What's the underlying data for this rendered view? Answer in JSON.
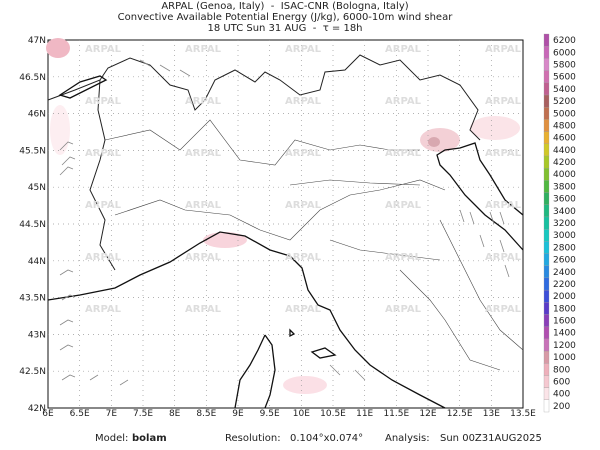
{
  "header": {
    "line1": "ARPAL (Genoa, Italy)  -  ISAC-CNR (Bologna, Italy)",
    "line2": "Convective Available Potential Energy (J/kg), 6000-10m wind shear",
    "line3": "18 UTC Sun 31 AUG  -  τ = 18h"
  },
  "map": {
    "watermark": "ARPAL",
    "lonlim": [
      6,
      13.5
    ],
    "latlim": [
      42,
      47
    ],
    "lon_ticks": [
      {
        "value": 6,
        "label": "6E"
      },
      {
        "value": 6.5,
        "label": "6.5E"
      },
      {
        "value": 7,
        "label": "7E"
      },
      {
        "value": 7.5,
        "label": "7.5E"
      },
      {
        "value": 8,
        "label": "8E"
      },
      {
        "value": 8.5,
        "label": "8.5E"
      },
      {
        "value": 9,
        "label": "9E"
      },
      {
        "value": 9.5,
        "label": "9.5E"
      },
      {
        "value": 10,
        "label": "10E"
      },
      {
        "value": 10.5,
        "label": "10.5E"
      },
      {
        "value": 11,
        "label": "11E"
      },
      {
        "value": 11.5,
        "label": "11.5E"
      },
      {
        "value": 12,
        "label": "12E"
      },
      {
        "value": 12.5,
        "label": "12.5E"
      },
      {
        "value": 13,
        "label": "13E"
      },
      {
        "value": 13.5,
        "label": "13.5E"
      }
    ],
    "lat_ticks": [
      {
        "value": 42,
        "label": "42N"
      },
      {
        "value": 42.5,
        "label": "42.5N"
      },
      {
        "value": 43,
        "label": "43N"
      },
      {
        "value": 43.5,
        "label": "43.5N"
      },
      {
        "value": 44,
        "label": "44N"
      },
      {
        "value": 44.5,
        "label": "44.5N"
      },
      {
        "value": 45,
        "label": "45N"
      },
      {
        "value": 45.5,
        "label": "45.5N"
      },
      {
        "value": 46,
        "label": "46N"
      },
      {
        "value": 46.5,
        "label": "46.5N"
      },
      {
        "value": 47,
        "label": "47N"
      }
    ]
  },
  "colorbar": {
    "levels": [
      200,
      400,
      600,
      800,
      1000,
      1200,
      1400,
      1600,
      1800,
      2000,
      2200,
      2400,
      2600,
      2800,
      3000,
      3200,
      3400,
      3600,
      3800,
      4000,
      4200,
      4400,
      4600,
      4800,
      5000,
      5200,
      5400,
      5600,
      5800,
      6000,
      6200
    ],
    "colors": [
      "#ffffff",
      "#fbe4e8",
      "#f5c8d0",
      "#eeb0bb",
      "#d89aa6",
      "#c873b8",
      "#b04fb0",
      "#8a3fb8",
      "#5a3cc8",
      "#3d4fd8",
      "#2f6be0",
      "#2a8ae0",
      "#22a8e0",
      "#1cc0d8",
      "#18c8c0",
      "#18c0a0",
      "#20b880",
      "#30b060",
      "#50b840",
      "#80c030",
      "#a8c828",
      "#d0c828",
      "#e8b030",
      "#e09040",
      "#c07050",
      "#a86060",
      "#c06090",
      "#d070b0",
      "#d888c8",
      "#c868b8",
      "#b050a8"
    ]
  },
  "footer": {
    "model_label": "Model:",
    "model": "bolam",
    "resolution_label": "Resolution:",
    "resolution": "0.104°x0.074°",
    "analysis_label": "Analysis:",
    "analysis": "Sun 00Z31AUG2025"
  }
}
